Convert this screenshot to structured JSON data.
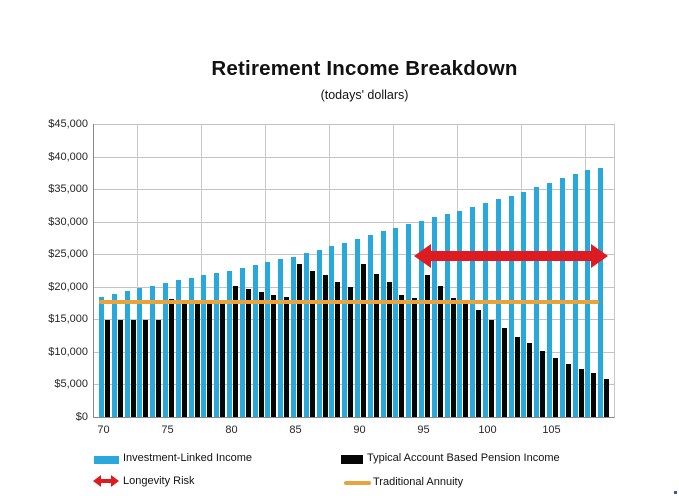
{
  "page": {
    "background": "#ffffff"
  },
  "chart_data": {
    "type": "bar",
    "title": "Retirement Income Breakdown",
    "subtitle": "(todays' dollars)",
    "xlabel": "",
    "ylabel": "",
    "ylim": [
      0,
      45000
    ],
    "grid": "horizontal and vertical light gray",
    "legend_position": "bottom",
    "categories": [
      70,
      71,
      72,
      73,
      74,
      75,
      76,
      77,
      78,
      79,
      80,
      81,
      82,
      83,
      84,
      85,
      86,
      87,
      88,
      89,
      90,
      91,
      92,
      93,
      94,
      95,
      96,
      97,
      98,
      99,
      100,
      101,
      102,
      103,
      104,
      105,
      106,
      107,
      108,
      109
    ],
    "x_tick_labels": [
      "70",
      "75",
      "80",
      "85",
      "90",
      "95",
      "100",
      "105"
    ],
    "y_tick_labels": [
      "$0",
      "$5,000",
      "$10,000",
      "$15,000",
      "$20,000",
      "$25,000",
      "$30,000",
      "$35,000",
      "$40,000",
      "$45,000"
    ],
    "series": [
      {
        "name": "Investment-Linked Income",
        "color": "#29a8dc",
        "values": [
          18500,
          18900,
          19350,
          19750,
          20200,
          20600,
          21000,
          21400,
          21800,
          22150,
          22500,
          22900,
          23350,
          23800,
          24200,
          24650,
          25150,
          25650,
          26250,
          26800,
          27350,
          27950,
          28550,
          29100,
          29600,
          30150,
          30700,
          31200,
          31700,
          32200,
          32850,
          33450,
          34000,
          34600,
          35300,
          35900,
          36700,
          37350,
          37900,
          38300
        ]
      },
      {
        "name": "Typical Account Based Pension Income",
        "color": "#060606",
        "values": [
          14900,
          14900,
          14900,
          14900,
          14900,
          18200,
          17900,
          17900,
          17900,
          17900,
          20200,
          19700,
          19200,
          18700,
          18500,
          23500,
          22500,
          21800,
          20700,
          20000,
          23500,
          22000,
          20700,
          18700,
          18300,
          21800,
          20200,
          18300,
          18000,
          16400,
          14900,
          13600,
          12300,
          11300,
          10200,
          9100,
          8200,
          7400,
          6800,
          5900
        ]
      }
    ],
    "annuity": {
      "name": "Traditional Annuity",
      "color": "#e8a33d",
      "value": 17600,
      "age_span": [
        69.6,
        108.6
      ]
    },
    "longevity_risk": {
      "name": "Longevity Risk",
      "color": "#dd1b20",
      "value": 24700,
      "age_span": [
        94.2,
        109.3
      ]
    }
  }
}
